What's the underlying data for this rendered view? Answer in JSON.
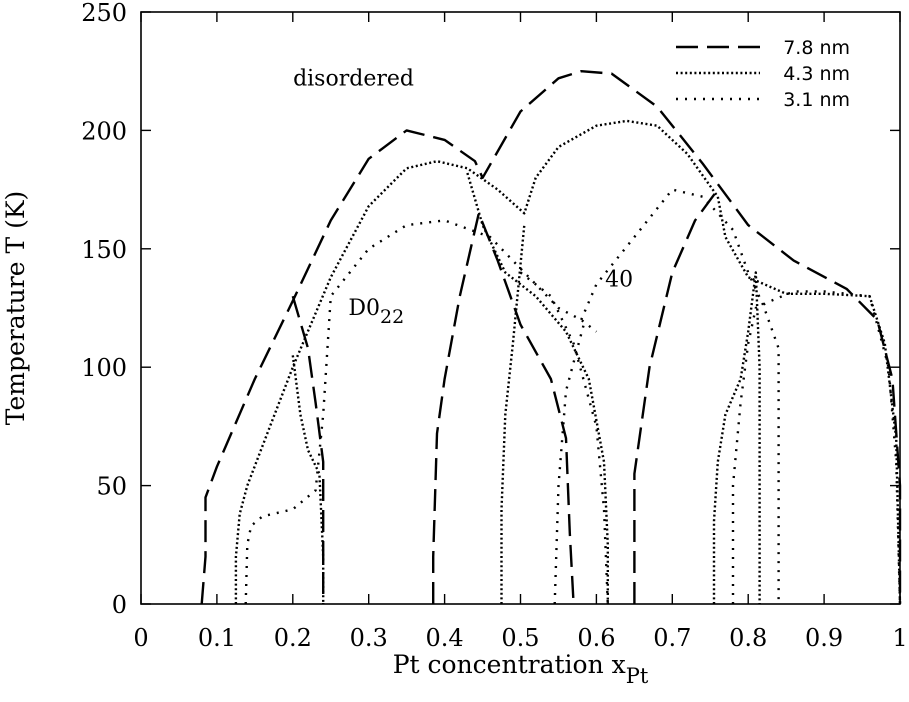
{
  "chart_data": {
    "type": "line",
    "title": "",
    "xlabel": "Pt concentration x",
    "xlabel_sub": "Pt",
    "ylabel": "Temperature T  (K)",
    "xlim": [
      0,
      1
    ],
    "ylim": [
      0,
      250
    ],
    "xticks": [
      0,
      0.1,
      0.2,
      0.3,
      0.4,
      0.5,
      0.6,
      0.7,
      0.8,
      0.9,
      1
    ],
    "xtick_labels": [
      "0",
      "0.1",
      "0.2",
      "0.3",
      "0.4",
      "0.5",
      "0.6",
      "0.7",
      "0.8",
      "0.9",
      "1"
    ],
    "yticks": [
      0,
      50,
      100,
      150,
      200,
      250
    ],
    "ytick_labels": [
      "0",
      "50",
      "100",
      "150",
      "200",
      "250"
    ],
    "grid": false,
    "legend_position": "top-right",
    "annotations": [
      {
        "text": "disordered",
        "x": 0.28,
        "y": 219
      },
      {
        "text": "D0",
        "sub": "22",
        "x": 0.31,
        "y": 122
      },
      {
        "text": "40",
        "x": 0.63,
        "y": 134
      }
    ],
    "series": [
      {
        "name": "7.8 nm",
        "dash": "dashed",
        "segments": [
          [
            [
              0.08,
              0
            ],
            [
              0.085,
              20
            ],
            [
              0.085,
              45
            ],
            [
              0.1,
              58
            ],
            [
              0.15,
              95
            ],
            [
              0.2,
              128
            ],
            [
              0.25,
              162
            ],
            [
              0.3,
              188
            ],
            [
              0.35,
              200
            ],
            [
              0.4,
              196
            ],
            [
              0.44,
              187
            ],
            [
              0.45,
              180
            ],
            [
              0.5,
              208
            ],
            [
              0.55,
              222
            ],
            [
              0.58,
              225
            ],
            [
              0.62,
              224
            ],
            [
              0.68,
              210
            ],
            [
              0.74,
              186
            ],
            [
              0.8,
              160
            ],
            [
              0.86,
              145
            ],
            [
              0.93,
              133
            ],
            [
              0.97,
              120
            ],
            [
              0.99,
              95
            ],
            [
              1.0,
              50
            ],
            [
              1.0,
              0
            ]
          ],
          [
            [
              0.2,
              130
            ],
            [
              0.22,
              108
            ],
            [
              0.23,
              85
            ],
            [
              0.24,
              60
            ],
            [
              0.24,
              25
            ],
            [
              0.24,
              0
            ]
          ],
          [
            [
              0.385,
              0
            ],
            [
              0.385,
              20
            ],
            [
              0.39,
              72
            ],
            [
              0.4,
              95
            ],
            [
              0.42,
              130
            ],
            [
              0.445,
              165
            ],
            [
              0.47,
              145
            ],
            [
              0.5,
              118
            ],
            [
              0.54,
              95
            ],
            [
              0.56,
              70
            ],
            [
              0.565,
              30
            ],
            [
              0.57,
              0
            ]
          ],
          [
            [
              0.65,
              0
            ],
            [
              0.65,
              55
            ],
            [
              0.67,
              100
            ],
            [
              0.7,
              140
            ],
            [
              0.73,
              162
            ],
            [
              0.76,
              175
            ]
          ]
        ]
      },
      {
        "name": "4.3 nm",
        "dash": "dense-dotted",
        "segments": [
          [
            [
              0.125,
              0
            ],
            [
              0.125,
              20
            ],
            [
              0.13,
              38
            ],
            [
              0.14,
              50
            ],
            [
              0.17,
              75
            ],
            [
              0.2,
              100
            ],
            [
              0.25,
              138
            ],
            [
              0.3,
              168
            ],
            [
              0.35,
              184
            ],
            [
              0.39,
              187
            ],
            [
              0.43,
              184
            ],
            [
              0.47,
              175
            ],
            [
              0.505,
              165
            ],
            [
              0.52,
              180
            ],
            [
              0.55,
              193
            ],
            [
              0.6,
              202
            ],
            [
              0.64,
              204
            ],
            [
              0.68,
              202
            ],
            [
              0.72,
              190
            ],
            [
              0.76,
              172
            ],
            [
              0.77,
              155
            ],
            [
              0.8,
              138
            ],
            [
              0.85,
              131
            ],
            [
              0.9,
              131
            ],
            [
              0.96,
              130
            ],
            [
              0.98,
              110
            ],
            [
              0.995,
              70
            ],
            [
              1.0,
              0
            ]
          ],
          [
            [
              0.2,
              105
            ],
            [
              0.21,
              80
            ],
            [
              0.22,
              65
            ],
            [
              0.235,
              55
            ],
            [
              0.24,
              20
            ],
            [
              0.24,
              0
            ]
          ],
          [
            [
              0.475,
              0
            ],
            [
              0.475,
              40
            ],
            [
              0.48,
              80
            ],
            [
              0.49,
              110
            ],
            [
              0.505,
              160
            ]
          ],
          [
            [
              0.43,
              182
            ],
            [
              0.45,
              160
            ],
            [
              0.48,
              140
            ],
            [
              0.52,
              130
            ],
            [
              0.56,
              115
            ],
            [
              0.59,
              95
            ],
            [
              0.61,
              60
            ],
            [
              0.615,
              25
            ],
            [
              0.615,
              0
            ]
          ],
          [
            [
              0.755,
              0
            ],
            [
              0.755,
              35
            ],
            [
              0.76,
              60
            ],
            [
              0.77,
              80
            ],
            [
              0.79,
              95
            ],
            [
              0.8,
              115
            ],
            [
              0.81,
              140
            ],
            [
              0.815,
              100
            ],
            [
              0.815,
              50
            ],
            [
              0.815,
              0
            ]
          ]
        ]
      },
      {
        "name": "3.1 nm",
        "dash": "sparse-dotted",
        "segments": [
          [
            [
              0.138,
              0
            ],
            [
              0.14,
              25
            ],
            [
              0.145,
              33
            ],
            [
              0.16,
              37
            ],
            [
              0.2,
              40
            ],
            [
              0.23,
              48
            ],
            [
              0.24,
              80
            ],
            [
              0.25,
              130
            ],
            [
              0.3,
              150
            ],
            [
              0.35,
              160
            ],
            [
              0.4,
              162
            ],
            [
              0.46,
              155
            ],
            [
              0.52,
              135
            ],
            [
              0.55,
              125
            ],
            [
              0.58,
              120
            ],
            [
              0.6,
              115
            ]
          ],
          [
            [
              0.58,
              120
            ],
            [
              0.6,
              135
            ],
            [
              0.65,
              155
            ],
            [
              0.7,
              175
            ],
            [
              0.74,
              172
            ],
            [
              0.78,
              158
            ],
            [
              0.8,
              140
            ],
            [
              0.82,
              126
            ],
            [
              0.84,
              108
            ],
            [
              0.84,
              60
            ],
            [
              0.84,
              0
            ]
          ],
          [
            [
              0.545,
              0
            ],
            [
              0.55,
              50
            ],
            [
              0.56,
              90
            ],
            [
              0.585,
              120
            ]
          ],
          [
            [
              0.5,
              140
            ],
            [
              0.54,
              130
            ],
            [
              0.57,
              110
            ],
            [
              0.6,
              75
            ],
            [
              0.61,
              40
            ],
            [
              0.615,
              0
            ]
          ],
          [
            [
              0.78,
              0
            ],
            [
              0.78,
              50
            ],
            [
              0.79,
              85
            ],
            [
              0.8,
              110
            ],
            [
              0.81,
              125
            ],
            [
              0.83,
              128
            ],
            [
              0.86,
              132
            ],
            [
              0.9,
              132
            ],
            [
              0.96,
              130
            ],
            [
              0.985,
              100
            ],
            [
              0.995,
              60
            ],
            [
              1.0,
              0
            ]
          ]
        ]
      }
    ]
  }
}
